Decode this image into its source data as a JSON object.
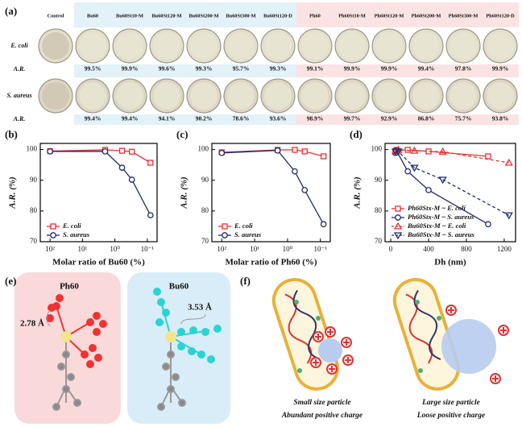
{
  "panel_a": {
    "label": "(a)",
    "columns": [
      "Control",
      "Bu60",
      "Bu60St10-M",
      "Bu60St120-M",
      "Bu60St200-M",
      "Bu60St300-M",
      "Bu60St120-D",
      "Ph60",
      "Ph60St10-M",
      "Ph60St120-M",
      "Ph60St200-M",
      "Ph60St300-M",
      "Ph60St120-D"
    ],
    "rows": [
      {
        "label": "E. coli",
        "ar_label": "A.R.",
        "values": [
          "99.5%",
          "99.9%",
          "99.6%",
          "99.3%",
          "95.7%",
          "99.3%",
          "99.1%",
          "99.9%",
          "99.9%",
          "99.4%",
          "97.8%",
          "99.9%"
        ]
      },
      {
        "label": "S. aureus",
        "ar_label": "A.R.",
        "values": [
          "99.4%",
          "99.4%",
          "94.1%",
          "90.2%",
          "78.6%",
          "93.6%",
          "98.9%",
          "99.7%",
          "92.9%",
          "86.8%",
          "75.7%",
          "93.8%"
        ]
      }
    ]
  },
  "chart_data": [
    {
      "type": "line",
      "panel_label": "(b)",
      "x_label": "Molar ratio of Bu60 (%)",
      "y_label": "A.R. (%)",
      "xscale": "log",
      "x": [
        100,
        2,
        0.6,
        0.3,
        0.08
      ],
      "xlim": [
        200,
        0.05
      ],
      "xticks": [
        {
          "value": 100,
          "label": "10²"
        },
        {
          "value": 10,
          "label": "10¹"
        },
        {
          "value": 1,
          "label": "10⁰"
        },
        {
          "value": 0.1,
          "label": "10⁻¹"
        }
      ],
      "ylim": [
        70,
        102
      ],
      "yticks": [
        70,
        80,
        90,
        100
      ],
      "legend": "lower left",
      "series": [
        {
          "name": "E. coli",
          "color": "#e8312f",
          "marker": "square",
          "linestyle": "solid",
          "values": [
            99.5,
            99.9,
            99.6,
            99.3,
            95.7
          ]
        },
        {
          "name": "S. aureus",
          "color": "#1f2a6e",
          "marker": "circle",
          "linestyle": "solid",
          "values": [
            99.4,
            99.4,
            94.1,
            90.2,
            78.6
          ]
        }
      ]
    },
    {
      "type": "line",
      "panel_label": "(c)",
      "x_label": "Molar ratio of Ph60 (%)",
      "y_label": "A.R. (%)",
      "xscale": "log",
      "x": [
        100,
        2,
        0.6,
        0.3,
        0.08
      ],
      "xlim": [
        200,
        0.05
      ],
      "xticks": [
        {
          "value": 100,
          "label": "10²"
        },
        {
          "value": 10,
          "label": "10¹"
        },
        {
          "value": 1,
          "label": "10⁰"
        },
        {
          "value": 0.1,
          "label": "10⁻¹"
        }
      ],
      "ylim": [
        70,
        102
      ],
      "yticks": [
        70,
        80,
        90,
        100
      ],
      "legend": "lower left",
      "series": [
        {
          "name": "E. coli",
          "color": "#e8312f",
          "marker": "square",
          "linestyle": "solid",
          "values": [
            99.1,
            99.9,
            99.9,
            99.4,
            97.8
          ]
        },
        {
          "name": "S. aureus",
          "color": "#1f2a6e",
          "marker": "circle",
          "linestyle": "solid",
          "values": [
            98.9,
            99.7,
            92.9,
            86.8,
            75.7
          ]
        }
      ]
    },
    {
      "type": "line",
      "panel_label": "(d)",
      "x_label": "Dh (nm)",
      "y_label": "A.R. (%)",
      "xscale": "linear",
      "xlim": [
        -60,
        1320
      ],
      "xticks": [
        0,
        400,
        800,
        1200
      ],
      "ylim": [
        70,
        102
      ],
      "yticks": [
        70,
        80,
        90,
        100
      ],
      "legend": "lower left",
      "series": [
        {
          "name": "Ph60Stx-M ~ E. coli",
          "color": "#e8312f",
          "marker": "square",
          "linestyle": "solid",
          "x": [
            50,
            60,
            180,
            400,
            1030
          ],
          "values": [
            99.1,
            99.9,
            99.9,
            99.4,
            97.8
          ]
        },
        {
          "name": "Ph60Stx-M ~ S. aureus",
          "color": "#1f2a6e",
          "marker": "circle",
          "linestyle": "solid",
          "x": [
            50,
            60,
            180,
            400,
            1030
          ],
          "values": [
            98.9,
            99.7,
            92.9,
            86.8,
            75.7
          ]
        },
        {
          "name": "Bu60Stx-M ~ E. coli",
          "color": "#e8312f",
          "marker": "triangle-up",
          "linestyle": "dashed",
          "x": [
            50,
            80,
            250,
            550,
            1250
          ],
          "values": [
            99.5,
            99.9,
            99.6,
            99.3,
            95.7
          ]
        },
        {
          "name": "Bu60Stx-M ~ S. aureus",
          "color": "#1f2a6e",
          "marker": "triangle-down",
          "linestyle": "dashed",
          "x": [
            50,
            80,
            250,
            550,
            1250
          ],
          "values": [
            99.4,
            99.4,
            94.1,
            90.2,
            78.6
          ]
        }
      ]
    }
  ],
  "panel_e": {
    "label": "(e)",
    "left_title": "Ph60",
    "right_title": "Bu60",
    "left_distance": "2.78 Å",
    "right_distance": "3.53 Å"
  },
  "panel_f": {
    "label": "(f)",
    "left_caption": [
      "Small size particle",
      "Abundant positive charge"
    ],
    "right_caption": [
      "Large size particle",
      "Loose positive charge"
    ]
  }
}
